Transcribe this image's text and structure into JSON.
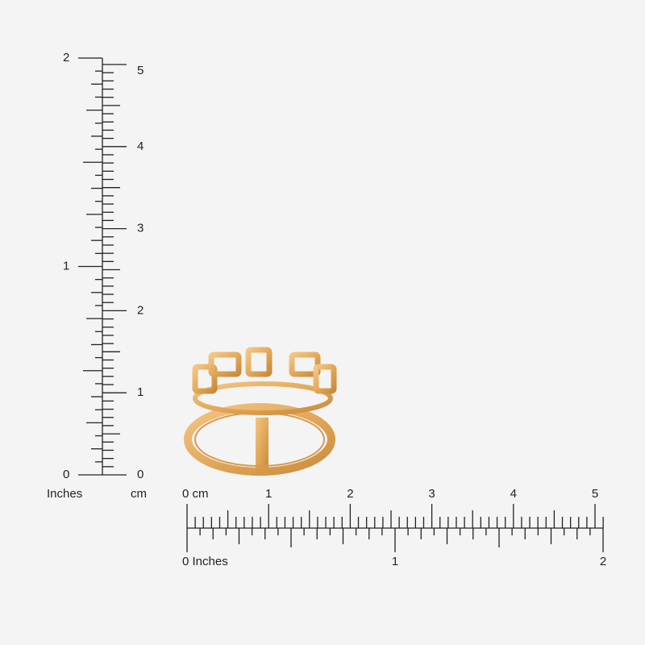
{
  "vertical_ruler": {
    "inch_labels": [
      "2",
      "1",
      "0"
    ],
    "inch_unit": "Inches",
    "cm_labels": [
      "5",
      "4",
      "3",
      "2",
      "1",
      "0"
    ],
    "cm_unit": "cm"
  },
  "horizontal_ruler": {
    "cm_labels": [
      "0 cm",
      "1",
      "2",
      "3",
      "4",
      "5"
    ],
    "inch_labels": [
      "0 Inches",
      "1",
      "2"
    ]
  }
}
